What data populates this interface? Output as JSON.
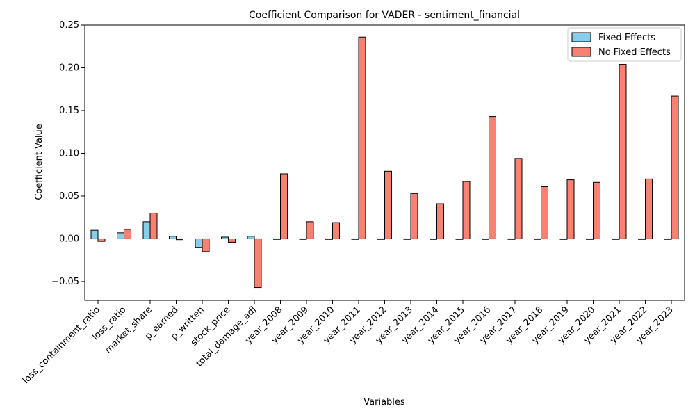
{
  "chart_data": {
    "type": "bar",
    "title": "Coefficient Comparison for VADER - sentiment_financial",
    "xlabel": "Variables",
    "ylabel": "Coefficient Value",
    "ylim": [
      -0.072,
      0.25
    ],
    "yticks": [
      -0.05,
      0.0,
      0.05,
      0.1,
      0.15,
      0.2,
      0.25
    ],
    "ytick_labels": [
      "−0.05",
      "0.00",
      "0.05",
      "0.10",
      "0.15",
      "0.20",
      "0.25"
    ],
    "grid": false,
    "zero_line": "dashed",
    "legend_position": "top-right",
    "categories": [
      "loss_containment_ratio",
      "loss_ratio",
      "market_share",
      "p_earned",
      "p_written",
      "stock_price",
      "total_damage_adj",
      "year_2008",
      "year_2009",
      "year_2010",
      "year_2011",
      "year_2012",
      "year_2013",
      "year_2014",
      "year_2015",
      "year_2016",
      "year_2017",
      "year_2018",
      "year_2019",
      "year_2020",
      "year_2021",
      "year_2022",
      "year_2023"
    ],
    "series": [
      {
        "name": "Fixed Effects",
        "color": "#87ceeb",
        "values": [
          0.01,
          0.007,
          0.02,
          0.003,
          -0.01,
          0.002,
          0.003,
          0,
          0,
          0,
          0,
          0,
          0,
          0,
          0,
          0,
          0,
          0,
          0,
          0,
          0,
          0,
          0
        ]
      },
      {
        "name": "No Fixed Effects",
        "color": "#fa8072",
        "values": [
          -0.003,
          0.011,
          0.03,
          -0.001,
          -0.015,
          -0.004,
          -0.057,
          0.076,
          0.02,
          0.019,
          0.236,
          0.079,
          0.053,
          0.041,
          0.067,
          0.143,
          0.094,
          0.061,
          0.069,
          0.066,
          0.204,
          0.07,
          0.167
        ]
      }
    ]
  }
}
